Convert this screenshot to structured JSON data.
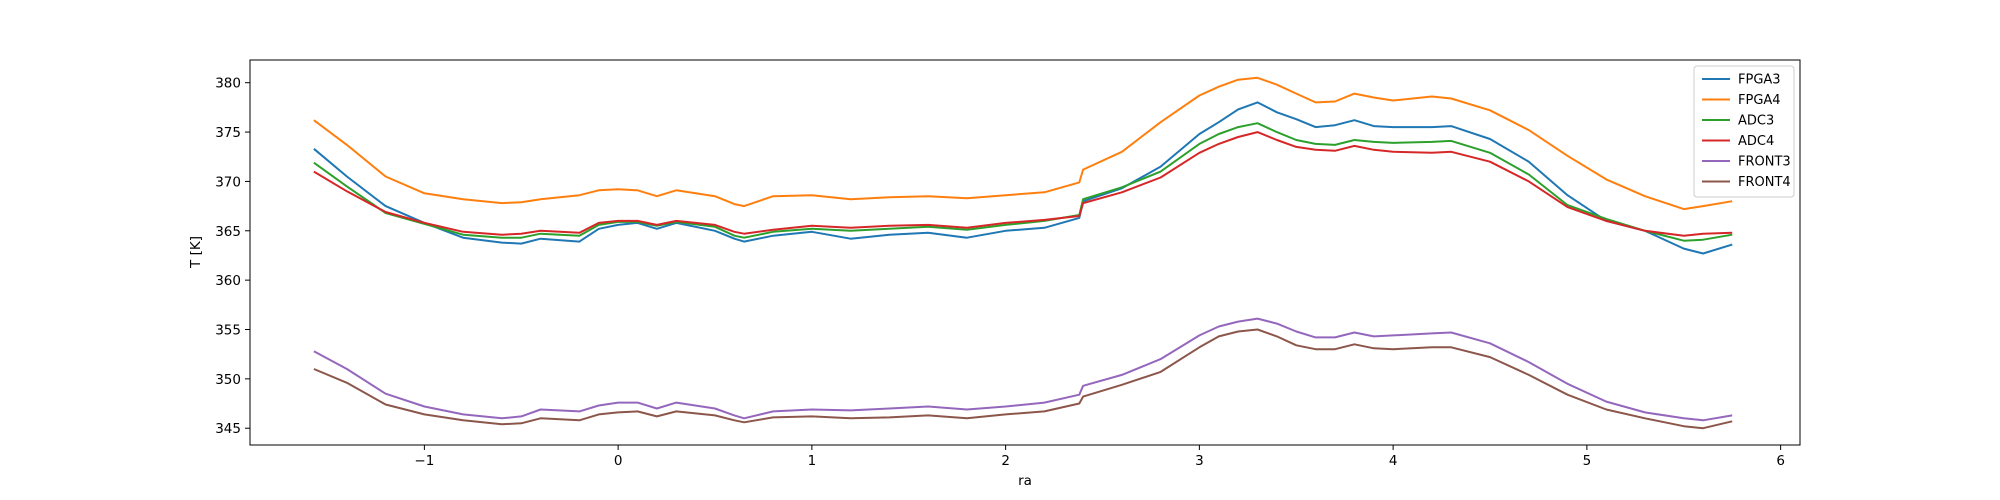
{
  "chart_data": {
    "type": "line",
    "xlabel": "ra",
    "ylabel": "T [K]",
    "xlim": [
      -1.9,
      6.1
    ],
    "ylim": [
      343.3,
      382.3
    ],
    "xticks": [
      -1,
      0,
      1,
      2,
      3,
      4,
      5,
      6
    ],
    "xtick_labels": [
      "−1",
      "0",
      "1",
      "2",
      "3",
      "4",
      "5",
      "6"
    ],
    "yticks": [
      345,
      350,
      355,
      360,
      365,
      370,
      375,
      380
    ],
    "ytick_labels": [
      "345",
      "350",
      "355",
      "360",
      "365",
      "370",
      "375",
      "380"
    ],
    "grid": false,
    "legend_position": "top-right",
    "x": [
      -1.57,
      -1.4,
      -1.2,
      -1.0,
      -0.8,
      -0.6,
      -0.5,
      -0.4,
      -0.2,
      -0.1,
      0.0,
      0.1,
      0.2,
      0.3,
      0.5,
      0.6,
      0.65,
      0.8,
      1.0,
      1.2,
      1.4,
      1.6,
      1.8,
      2.0,
      2.2,
      2.38,
      2.4,
      2.6,
      2.8,
      3.0,
      3.1,
      3.2,
      3.3,
      3.4,
      3.5,
      3.6,
      3.7,
      3.8,
      3.9,
      4.0,
      4.2,
      4.3,
      4.5,
      4.7,
      4.9,
      5.1,
      5.3,
      5.5,
      5.6,
      5.75
    ],
    "series": [
      {
        "name": "FPGA3",
        "color": "#1f77b4",
        "values": [
          373.3,
          370.5,
          367.5,
          365.8,
          364.3,
          363.8,
          363.7,
          364.2,
          363.9,
          365.2,
          365.6,
          365.8,
          365.2,
          365.8,
          365.0,
          364.2,
          363.9,
          364.5,
          364.9,
          364.2,
          364.6,
          364.8,
          364.3,
          365.0,
          365.3,
          366.3,
          368.0,
          369.3,
          371.5,
          374.8,
          376.0,
          377.3,
          378.0,
          377.0,
          376.3,
          375.5,
          375.7,
          376.2,
          375.6,
          375.5,
          375.5,
          375.6,
          374.3,
          372.0,
          368.6,
          366.0,
          365.0,
          363.2,
          362.7,
          363.6
        ]
      },
      {
        "name": "FPGA4",
        "color": "#ff7f0e",
        "values": [
          376.2,
          373.7,
          370.5,
          368.8,
          368.2,
          367.8,
          367.9,
          368.2,
          368.6,
          369.1,
          369.2,
          369.1,
          368.5,
          369.1,
          368.5,
          367.7,
          367.5,
          368.5,
          368.6,
          368.2,
          368.4,
          368.5,
          368.3,
          368.6,
          368.9,
          369.9,
          371.2,
          373.0,
          376.0,
          378.7,
          379.6,
          380.3,
          380.5,
          379.8,
          378.9,
          378.0,
          378.1,
          378.9,
          378.5,
          378.2,
          378.6,
          378.4,
          377.2,
          375.2,
          372.6,
          370.2,
          368.5,
          367.2,
          367.5,
          368.0
        ]
      },
      {
        "name": "ADC3",
        "color": "#2ca02c",
        "values": [
          371.9,
          369.5,
          366.8,
          365.7,
          364.6,
          364.3,
          364.3,
          364.7,
          364.5,
          365.6,
          365.9,
          365.9,
          365.5,
          365.9,
          365.4,
          364.5,
          364.3,
          364.9,
          365.2,
          365.0,
          365.2,
          365.4,
          365.1,
          365.6,
          366.0,
          366.6,
          368.2,
          369.4,
          371.0,
          373.8,
          374.8,
          375.5,
          375.9,
          375.0,
          374.2,
          373.8,
          373.7,
          374.2,
          374.0,
          373.9,
          374.0,
          374.1,
          372.9,
          370.7,
          367.6,
          366.2,
          365.0,
          364.0,
          364.1,
          364.6
        ]
      },
      {
        "name": "ADC4",
        "color": "#d62728",
        "values": [
          371.0,
          369.0,
          366.9,
          365.8,
          364.9,
          364.6,
          364.7,
          365.0,
          364.8,
          365.8,
          366.0,
          366.0,
          365.6,
          366.0,
          365.6,
          364.9,
          364.7,
          365.1,
          365.5,
          365.3,
          365.5,
          365.6,
          365.3,
          365.8,
          366.1,
          366.5,
          367.8,
          368.9,
          370.4,
          372.9,
          373.8,
          374.5,
          375.0,
          374.2,
          373.5,
          373.2,
          373.1,
          373.6,
          373.2,
          373.0,
          372.9,
          373.0,
          372.0,
          370.0,
          367.4,
          366.0,
          365.0,
          364.5,
          364.7,
          364.8
        ]
      },
      {
        "name": "FRONT3",
        "color": "#9467bd",
        "values": [
          352.8,
          351.0,
          348.5,
          347.2,
          346.4,
          346.0,
          346.2,
          346.9,
          346.7,
          347.3,
          347.6,
          347.6,
          347.0,
          347.6,
          347.0,
          346.3,
          346.0,
          346.7,
          346.9,
          346.8,
          347.0,
          347.2,
          346.9,
          347.2,
          347.6,
          348.4,
          349.3,
          350.4,
          352.0,
          354.4,
          355.3,
          355.8,
          356.1,
          355.6,
          354.8,
          354.2,
          354.2,
          354.7,
          354.3,
          354.4,
          354.6,
          354.7,
          353.6,
          351.7,
          349.5,
          347.7,
          346.6,
          346.0,
          345.8,
          346.3
        ]
      },
      {
        "name": "FRONT4",
        "color": "#8c564b",
        "values": [
          351.0,
          349.6,
          347.4,
          346.4,
          345.8,
          345.4,
          345.5,
          346.0,
          345.8,
          346.4,
          346.6,
          346.7,
          346.2,
          346.7,
          346.3,
          345.8,
          345.6,
          346.1,
          346.2,
          346.0,
          346.1,
          346.3,
          346.0,
          346.4,
          346.7,
          347.5,
          348.2,
          349.4,
          350.7,
          353.2,
          354.3,
          354.8,
          355.0,
          354.3,
          353.4,
          353.0,
          353.0,
          353.5,
          353.1,
          353.0,
          353.2,
          353.2,
          352.2,
          350.4,
          348.4,
          346.9,
          346.0,
          345.2,
          345.0,
          345.7
        ]
      }
    ]
  }
}
